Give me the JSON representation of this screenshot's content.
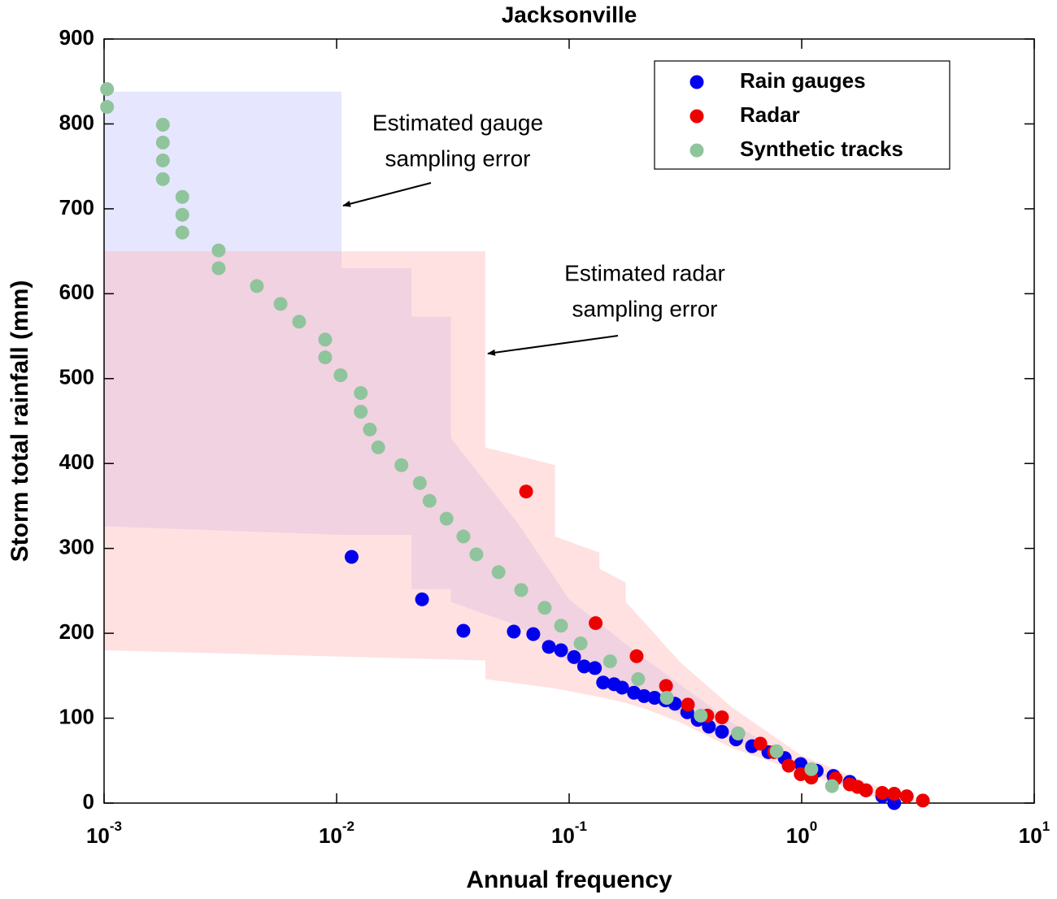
{
  "chart_data": {
    "type": "scatter",
    "title": "Jacksonville",
    "xlabel": "Annual frequency",
    "ylabel": "Storm total rainfall (mm)",
    "xscale": "log",
    "xlim": [
      0.001,
      10
    ],
    "xticks": [
      {
        "value": 0.001,
        "label": "10",
        "exponent": "-3"
      },
      {
        "value": 0.01,
        "label": "10",
        "exponent": "-2"
      },
      {
        "value": 0.1,
        "label": "10",
        "exponent": "-1"
      },
      {
        "value": 1,
        "label": "10",
        "exponent": "0"
      },
      {
        "value": 10,
        "label": "10",
        "exponent": "1"
      }
    ],
    "ylim": [
      0,
      900
    ],
    "yticks": [
      0,
      100,
      200,
      300,
      400,
      500,
      600,
      700,
      800,
      900
    ],
    "legend": "upper right",
    "bands": [
      {
        "color": "#c8c8ff",
        "opacity": 0.45,
        "x": [
          0.001,
          0.0105,
          0.0105,
          0.021,
          0.021,
          0.031,
          0.031,
          0.06,
          0.1,
          0.2,
          0.5,
          1,
          2.5
        ],
        "upper": [
          838,
          838,
          630,
          630,
          573,
          573,
          430,
          330,
          240,
          175,
          95,
          45,
          0
        ],
        "lower": [
          326,
          316,
          316,
          316,
          252,
          252,
          237,
          209,
          166,
          127,
          75,
          41,
          0
        ]
      },
      {
        "color": "#ffb4b4",
        "opacity": 0.4,
        "x": [
          0.001,
          0.0436,
          0.0436,
          0.087,
          0.087,
          0.135,
          0.135,
          0.175,
          0.175,
          0.217,
          0.3,
          0.5,
          1,
          2,
          3.3
        ],
        "upper": [
          650,
          650,
          419,
          398,
          314,
          295,
          276,
          260,
          237,
          209,
          166,
          113,
          56,
          22,
          0
        ],
        "lower": [
          180,
          168,
          146,
          135,
          135,
          125,
          125,
          118,
          118,
          110,
          95,
          65,
          36,
          8,
          0
        ]
      }
    ],
    "series": [
      {
        "name": "Rain gauges",
        "color": "#0000ee",
        "x": [
          0.0116,
          0.0233,
          0.0351,
          0.0578,
          0.0701,
          0.0818,
          0.0923,
          0.105,
          0.116,
          0.129,
          0.14,
          0.156,
          0.169,
          0.19,
          0.21,
          0.233,
          0.259,
          0.285,
          0.322,
          0.357,
          0.399,
          0.454,
          0.522,
          0.612,
          0.719,
          0.845,
          0.99,
          1.16,
          1.37,
          1.61,
          1.89,
          2.22,
          2.5
        ],
        "values": [
          290,
          240,
          203,
          202,
          199,
          184,
          180,
          172,
          161,
          159,
          142,
          140,
          136,
          130,
          126,
          124,
          121,
          117,
          107,
          98,
          90,
          84,
          75,
          67,
          60,
          53,
          46,
          38,
          32,
          25,
          15,
          8,
          0
        ]
      },
      {
        "name": "Radar",
        "color": "#ee0000",
        "x": [
          0.0653,
          0.13,
          0.195,
          0.261,
          0.324,
          0.393,
          0.454,
          0.533,
          0.664,
          0.76,
          0.879,
          0.99,
          1.1,
          1.4,
          1.61,
          1.74,
          1.89,
          2.22,
          2.5,
          2.83,
          3.32
        ],
        "values": [
          367,
          212,
          173,
          138,
          116,
          103,
          101,
          82,
          70,
          60,
          44,
          34,
          30,
          29,
          22,
          19,
          15,
          12,
          11,
          8,
          3
        ]
      },
      {
        "name": "Synthetic tracks",
        "color": "#90c49c",
        "x": [
          0.00103,
          0.00103,
          0.00179,
          0.00179,
          0.00179,
          0.00179,
          0.00217,
          0.00217,
          0.00217,
          0.00311,
          0.00311,
          0.00454,
          0.00574,
          0.0069,
          0.00893,
          0.00893,
          0.0104,
          0.0127,
          0.0127,
          0.0139,
          0.0151,
          0.019,
          0.0228,
          0.0251,
          0.0297,
          0.0351,
          0.0399,
          0.0497,
          0.0622,
          0.0785,
          0.0923,
          0.112,
          0.15,
          0.198,
          0.263,
          0.368,
          0.533,
          0.78,
          1.1,
          1.35
        ],
        "values": [
          841,
          820,
          799,
          778,
          757,
          735,
          714,
          693,
          672,
          651,
          630,
          609,
          588,
          567,
          546,
          525,
          504,
          483,
          461,
          440,
          419,
          398,
          377,
          356,
          335,
          314,
          293,
          272,
          251,
          230,
          209,
          188,
          167,
          146,
          124,
          103,
          82,
          61,
          40,
          20
        ]
      }
    ],
    "annotations": [
      {
        "lines": [
          "Estimated gauge",
          "sampling error"
        ]
      },
      {
        "lines": [
          "Estimated radar",
          "sampling error"
        ]
      }
    ]
  }
}
